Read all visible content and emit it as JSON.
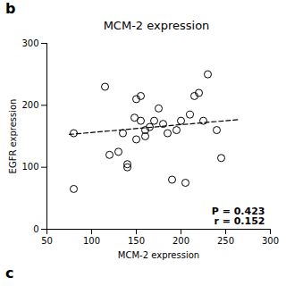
{
  "chart_data": {
    "type": "scatter",
    "title": "MCM-2 expression",
    "xlabel": "MCM-2 expression",
    "ylabel": "EGFR expression",
    "x": [
      80,
      80,
      115,
      120,
      130,
      135,
      140,
      140,
      148,
      150,
      150,
      155,
      155,
      160,
      160,
      165,
      170,
      175,
      180,
      185,
      190,
      195,
      200,
      205,
      210,
      215,
      220,
      225,
      230,
      240,
      245
    ],
    "values": [
      65,
      155,
      230,
      120,
      125,
      155,
      100,
      105,
      180,
      145,
      210,
      175,
      215,
      160,
      150,
      165,
      175,
      195,
      170,
      155,
      80,
      160,
      175,
      75,
      185,
      215,
      220,
      175,
      250,
      160,
      115
    ],
    "color": "#000000",
    "marker": "open circle",
    "trend_line": {
      "x": [
        75,
        265
      ],
      "values": [
        153,
        177
      ],
      "color": "#000000",
      "line_style": "dashed"
    },
    "xlim": [
      50,
      300
    ],
    "ylim": [
      0,
      300
    ],
    "xticks": [
      50,
      100,
      150,
      200,
      250,
      300
    ],
    "yticks": [
      0,
      100,
      200,
      300
    ],
    "grid": false,
    "annotations": [
      "P = 0.423\nr = 0.152"
    ],
    "panel_labels": [
      "b",
      "c"
    ]
  }
}
